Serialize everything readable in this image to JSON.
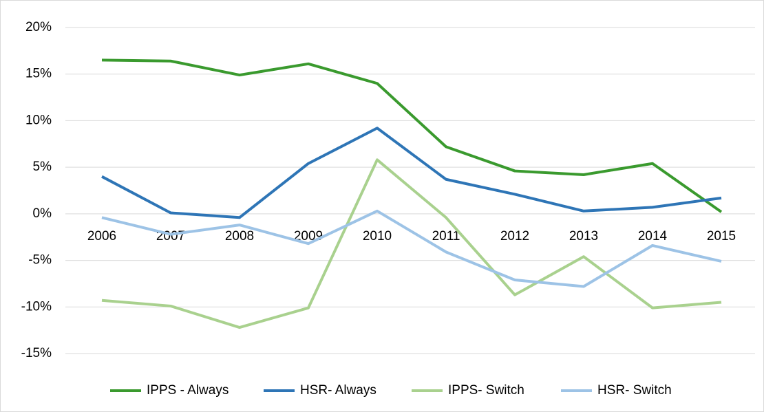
{
  "chart_data": {
    "type": "line",
    "categories": [
      "2006",
      "2007",
      "2008",
      "2009",
      "2010",
      "2011",
      "2012",
      "2013",
      "2014",
      "2015"
    ],
    "series": [
      {
        "name": "IPPS - Always",
        "color": "#3a9a2e",
        "values": [
          16.5,
          16.4,
          14.9,
          16.1,
          14.0,
          7.2,
          4.6,
          4.2,
          5.4,
          0.2
        ]
      },
      {
        "name": "HSR- Always",
        "color": "#2e75b6",
        "values": [
          4.0,
          0.1,
          -0.4,
          5.4,
          9.2,
          3.7,
          2.1,
          0.3,
          0.7,
          1.7
        ]
      },
      {
        "name": "IPPS- Switch",
        "color": "#a9d18e",
        "values": [
          -9.3,
          -9.9,
          -12.2,
          -10.1,
          5.8,
          -0.4,
          -8.7,
          -4.6,
          -10.1,
          -9.5
        ]
      },
      {
        "name": "HSR- Switch",
        "color": "#9dc3e6",
        "values": [
          -0.4,
          -2.2,
          -1.2,
          -3.2,
          0.3,
          -4.1,
          -7.1,
          -7.8,
          -3.4,
          -5.1
        ]
      }
    ],
    "ylim": [
      -15,
      20
    ],
    "yticks": [
      {
        "value": -15,
        "label": "-15%"
      },
      {
        "value": -10,
        "label": "-10%"
      },
      {
        "value": -5,
        "label": "-5%"
      },
      {
        "value": 0,
        "label": "0%"
      },
      {
        "value": 5,
        "label": "5%"
      },
      {
        "value": 10,
        "label": "10%"
      },
      {
        "value": 15,
        "label": "15%"
      },
      {
        "value": 20,
        "label": "20%"
      }
    ],
    "grid": true,
    "legend": "bottom"
  }
}
